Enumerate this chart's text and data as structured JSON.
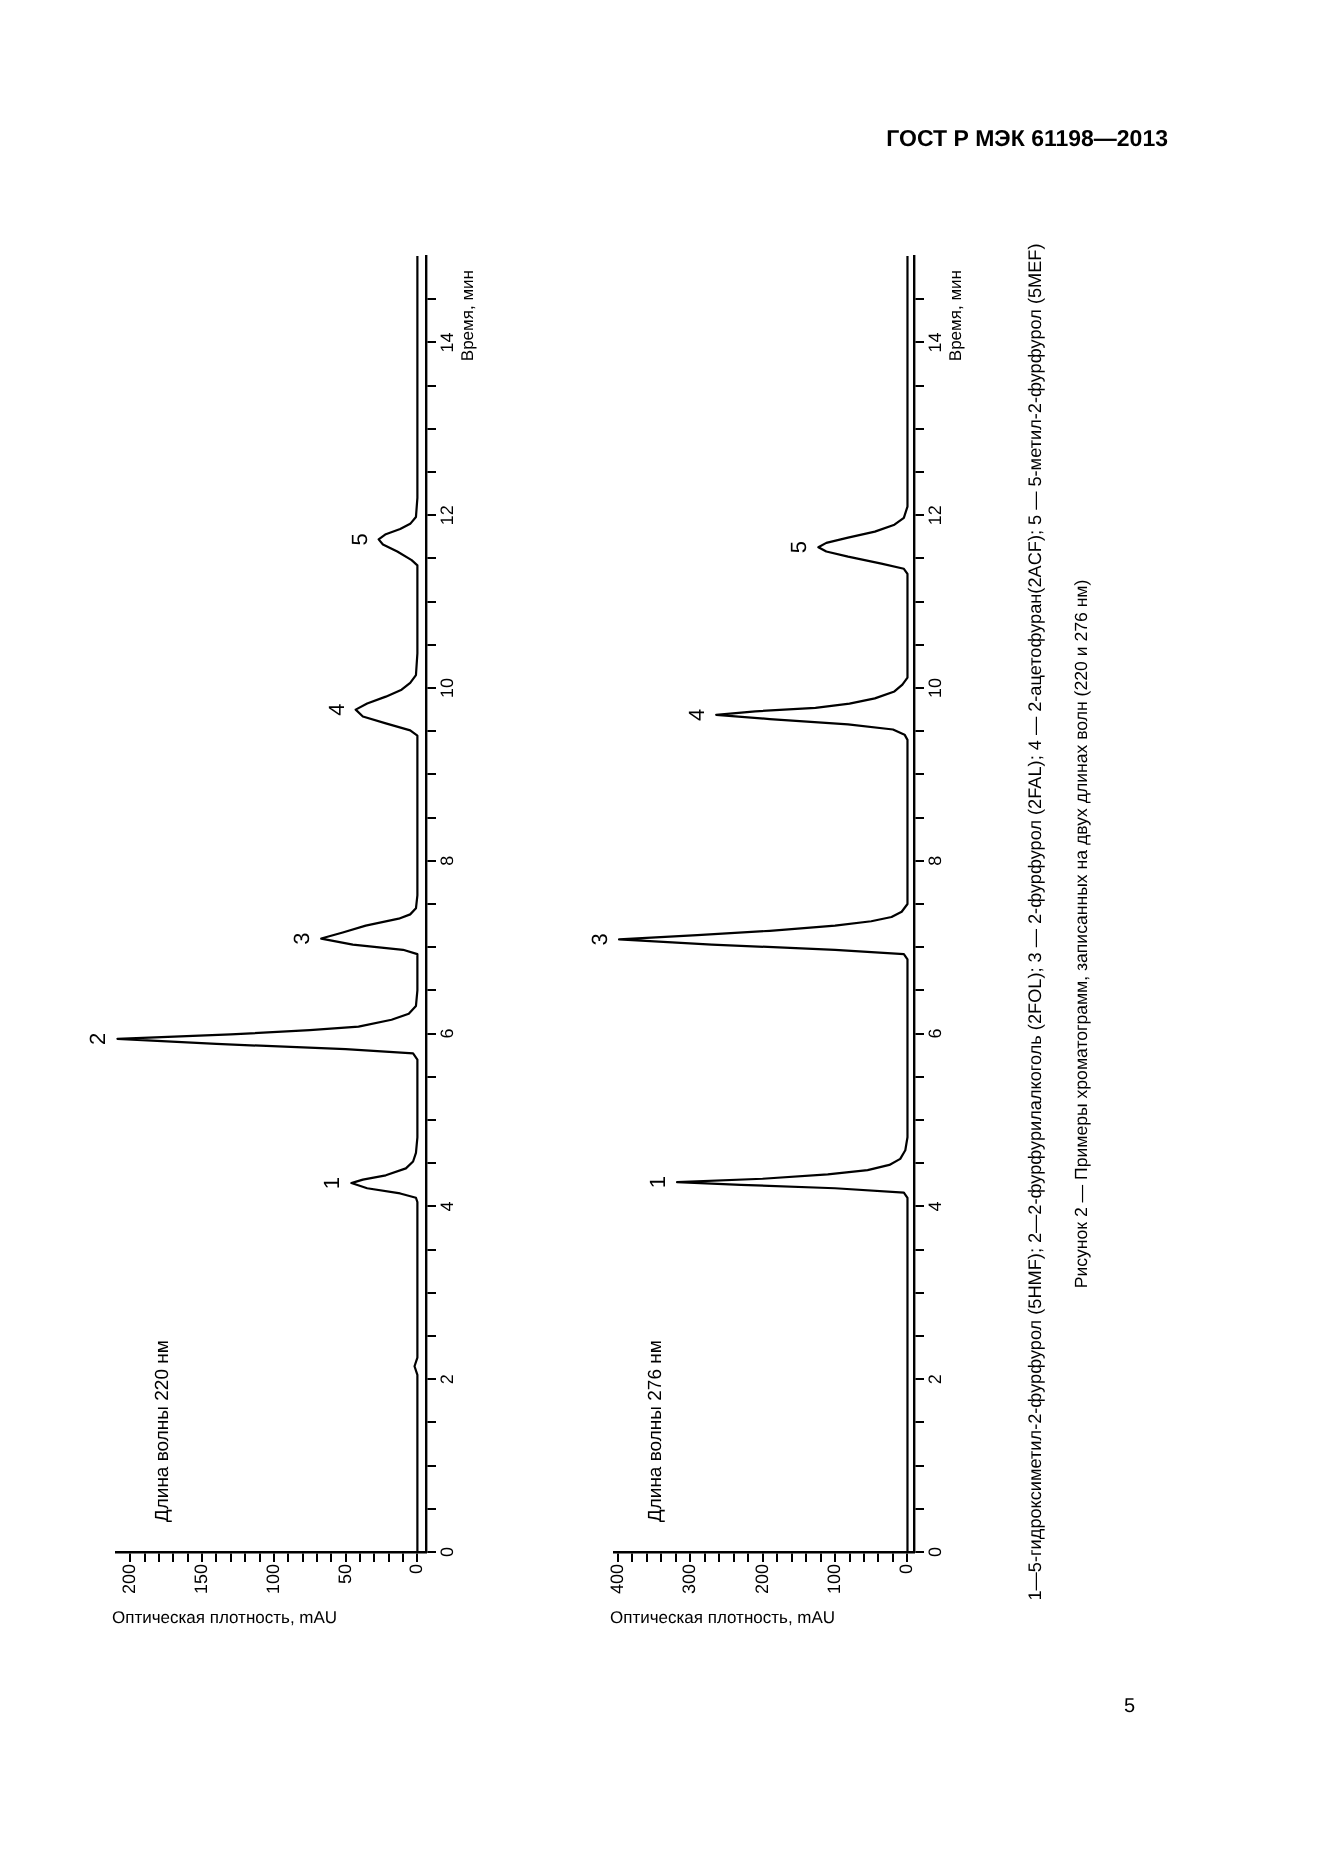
{
  "chart_data": [
    {
      "type": "line",
      "xlabel": "Оптическая плотность, mAU",
      "ylabel": "Время, мин",
      "color": "#000000",
      "marker": "none",
      "line_style": "solid",
      "x": [
        0,
        0,
        2,
        0,
        0,
        1,
        12,
        35,
        46,
        38,
        22,
        8,
        3,
        1,
        0,
        0,
        3,
        50,
        140,
        209,
        130,
        75,
        41,
        18,
        6,
        1,
        0,
        0,
        10,
        45,
        67,
        52,
        36,
        13,
        5,
        1,
        0,
        0,
        5,
        22,
        38,
        43,
        35,
        22,
        11,
        5,
        1,
        0,
        0,
        4,
        14,
        24,
        27,
        22,
        12,
        5,
        1,
        0,
        0
      ],
      "values": [
        0,
        2.05,
        2.15,
        2.25,
        4.05,
        4.1,
        4.15,
        4.21,
        4.27,
        4.31,
        4.36,
        4.44,
        4.52,
        4.62,
        4.8,
        5.7,
        5.77,
        5.82,
        5.88,
        5.94,
        5.99,
        6.04,
        6.08,
        6.16,
        6.23,
        6.32,
        6.5,
        6.92,
        6.97,
        7.03,
        7.1,
        7.17,
        7.25,
        7.33,
        7.38,
        7.45,
        7.6,
        9.45,
        9.51,
        9.59,
        9.67,
        9.75,
        9.82,
        9.9,
        9.98,
        10.06,
        10.15,
        10.4,
        11.42,
        11.48,
        11.58,
        11.66,
        11.72,
        11.78,
        11.84,
        11.9,
        11.98,
        12.2,
        15
      ],
      "xlim": [
        210,
        -6
      ],
      "xticks": [
        0,
        {
          "value": 10,
          "label": null
        },
        {
          "value": 20,
          "label": null
        },
        {
          "value": 30,
          "label": null
        },
        {
          "value": 40,
          "label": null
        },
        50,
        {
          "value": 60,
          "label": null
        },
        {
          "value": 70,
          "label": null
        },
        {
          "value": 80,
          "label": null
        },
        {
          "value": 90,
          "label": null
        },
        100,
        {
          "value": 110,
          "label": null
        },
        {
          "value": 120,
          "label": null
        },
        {
          "value": 130,
          "label": null
        },
        {
          "value": 140,
          "label": null
        },
        150,
        {
          "value": 160,
          "label": null
        },
        {
          "value": 170,
          "label": null
        },
        {
          "value": 180,
          "label": null
        },
        {
          "value": 190,
          "label": null
        },
        200
      ],
      "ylim": [
        0,
        15
      ],
      "yticks": [
        0,
        {
          "value": 0.5,
          "label": null
        },
        {
          "value": 1,
          "label": null
        },
        {
          "value": 1.5,
          "label": null
        },
        2,
        {
          "value": 2.5,
          "label": null
        },
        {
          "value": 3,
          "label": null
        },
        {
          "value": 3.5,
          "label": null
        },
        4,
        {
          "value": 4.5,
          "label": null
        },
        {
          "value": 5,
          "label": null
        },
        {
          "value": 5.5,
          "label": null
        },
        6,
        {
          "value": 6.5,
          "label": null
        },
        {
          "value": 7,
          "label": null
        },
        {
          "value": 7.5,
          "label": null
        },
        8,
        {
          "value": 8.5,
          "label": null
        },
        {
          "value": 9,
          "label": null
        },
        {
          "value": 9.5,
          "label": null
        },
        10,
        {
          "value": 10.5,
          "label": null
        },
        {
          "value": 11,
          "label": null
        },
        {
          "value": 11.5,
          "label": null
        },
        12,
        {
          "value": 12.5,
          "label": null
        },
        {
          "value": 13,
          "label": null
        },
        {
          "value": 13.5,
          "label": null
        },
        14,
        {
          "value": 14.5,
          "label": null
        }
      ],
      "annotations": [
        "Длина волны 220 нм",
        {
          "text": "1",
          "x": 46,
          "y": 4.27
        },
        {
          "text": "2",
          "x": 209,
          "y": 5.94
        },
        {
          "text": "3",
          "x": 67,
          "y": 7.1
        },
        {
          "text": "4",
          "x": 43,
          "y": 9.75
        },
        {
          "text": "5",
          "x": 27,
          "y": 11.72
        },
        "ГОСТ Р МЭК 61198—2013"
      ]
    },
    {
      "type": "line",
      "xlabel": "Оптическая плотность, mAU",
      "ylabel": "Время, мин",
      "color": "#000000",
      "marker": "none",
      "line_style": "solid",
      "x": [
        0,
        0,
        5,
        100,
        230,
        318,
        200,
        110,
        55,
        25,
        10,
        3,
        0,
        0,
        5,
        100,
        270,
        398,
        290,
        190,
        100,
        50,
        22,
        8,
        0,
        0,
        4,
        20,
        82,
        190,
        264,
        210,
        127,
        80,
        45,
        18,
        7,
        0,
        0,
        5,
        36,
        82,
        112,
        123,
        112,
        82,
        45,
        18,
        5,
        0,
        0
      ],
      "values": [
        0,
        4.1,
        4.16,
        4.21,
        4.25,
        4.28,
        4.32,
        4.37,
        4.42,
        4.48,
        4.55,
        4.65,
        4.8,
        6.86,
        6.92,
        6.97,
        7.03,
        7.09,
        7.14,
        7.19,
        7.25,
        7.3,
        7.35,
        7.41,
        7.5,
        9.4,
        9.46,
        9.52,
        9.58,
        9.64,
        9.69,
        9.73,
        9.77,
        9.82,
        9.88,
        9.96,
        10.04,
        10.12,
        11.32,
        11.38,
        11.44,
        11.52,
        11.58,
        11.63,
        11.68,
        11.74,
        11.81,
        11.89,
        11.97,
        12.1,
        15
      ],
      "xlim": [
        405,
        -9
      ],
      "xticks": [
        0,
        {
          "value": 20,
          "label": null
        },
        {
          "value": 40,
          "label": null
        },
        {
          "value": 60,
          "label": null
        },
        {
          "value": 80,
          "label": null
        },
        100,
        {
          "value": 120,
          "label": null
        },
        {
          "value": 140,
          "label": null
        },
        {
          "value": 160,
          "label": null
        },
        {
          "value": 180,
          "label": null
        },
        200,
        {
          "value": 220,
          "label": null
        },
        {
          "value": 240,
          "label": null
        },
        {
          "value": 260,
          "label": null
        },
        {
          "value": 280,
          "label": null
        },
        300,
        {
          "value": 320,
          "label": null
        },
        {
          "value": 340,
          "label": null
        },
        {
          "value": 360,
          "label": null
        },
        {
          "value": 380,
          "label": null
        },
        400
      ],
      "ylim": [
        0,
        15
      ],
      "yticks": [
        0,
        {
          "value": 0.5,
          "label": null
        },
        {
          "value": 1,
          "label": null
        },
        {
          "value": 1.5,
          "label": null
        },
        2,
        {
          "value": 2.5,
          "label": null
        },
        {
          "value": 3,
          "label": null
        },
        {
          "value": 3.5,
          "label": null
        },
        4,
        {
          "value": 4.5,
          "label": null
        },
        {
          "value": 5,
          "label": null
        },
        {
          "value": 5.5,
          "label": null
        },
        6,
        {
          "value": 6.5,
          "label": null
        },
        {
          "value": 7,
          "label": null
        },
        {
          "value": 7.5,
          "label": null
        },
        8,
        {
          "value": 8.5,
          "label": null
        },
        {
          "value": 9,
          "label": null
        },
        {
          "value": 9.5,
          "label": null
        },
        10,
        {
          "value": 10.5,
          "label": null
        },
        {
          "value": 11,
          "label": null
        },
        {
          "value": 11.5,
          "label": null
        },
        12,
        {
          "value": 12.5,
          "label": null
        },
        {
          "value": 13,
          "label": null
        },
        {
          "value": 13.5,
          "label": null
        },
        14,
        {
          "value": 14.5,
          "label": null
        }
      ],
      "annotations": [
        "Длина волны 276 нм",
        {
          "text": "1",
          "x": 318,
          "y": 4.28
        },
        {
          "text": "3",
          "x": 398,
          "y": 7.09
        },
        {
          "text": "4",
          "x": 264,
          "y": 9.69
        },
        {
          "text": "5",
          "x": 123,
          "y": 11.63
        },
        "1—5-гидроксиметил-2-фурфурол (5HMF); 2—2-фурфурилалкоголь (2FOL); 3 — 2-фурфурол (2FAL); 4 — 2-ацетофуран(2ACF); 5 — 5-метил-2-фурфурол (5MEF)",
        "Рисунок 2 — Примеры хроматограмм, записанных на двух длинах волн (220 и 276 нм)",
        "5"
      ]
    }
  ]
}
